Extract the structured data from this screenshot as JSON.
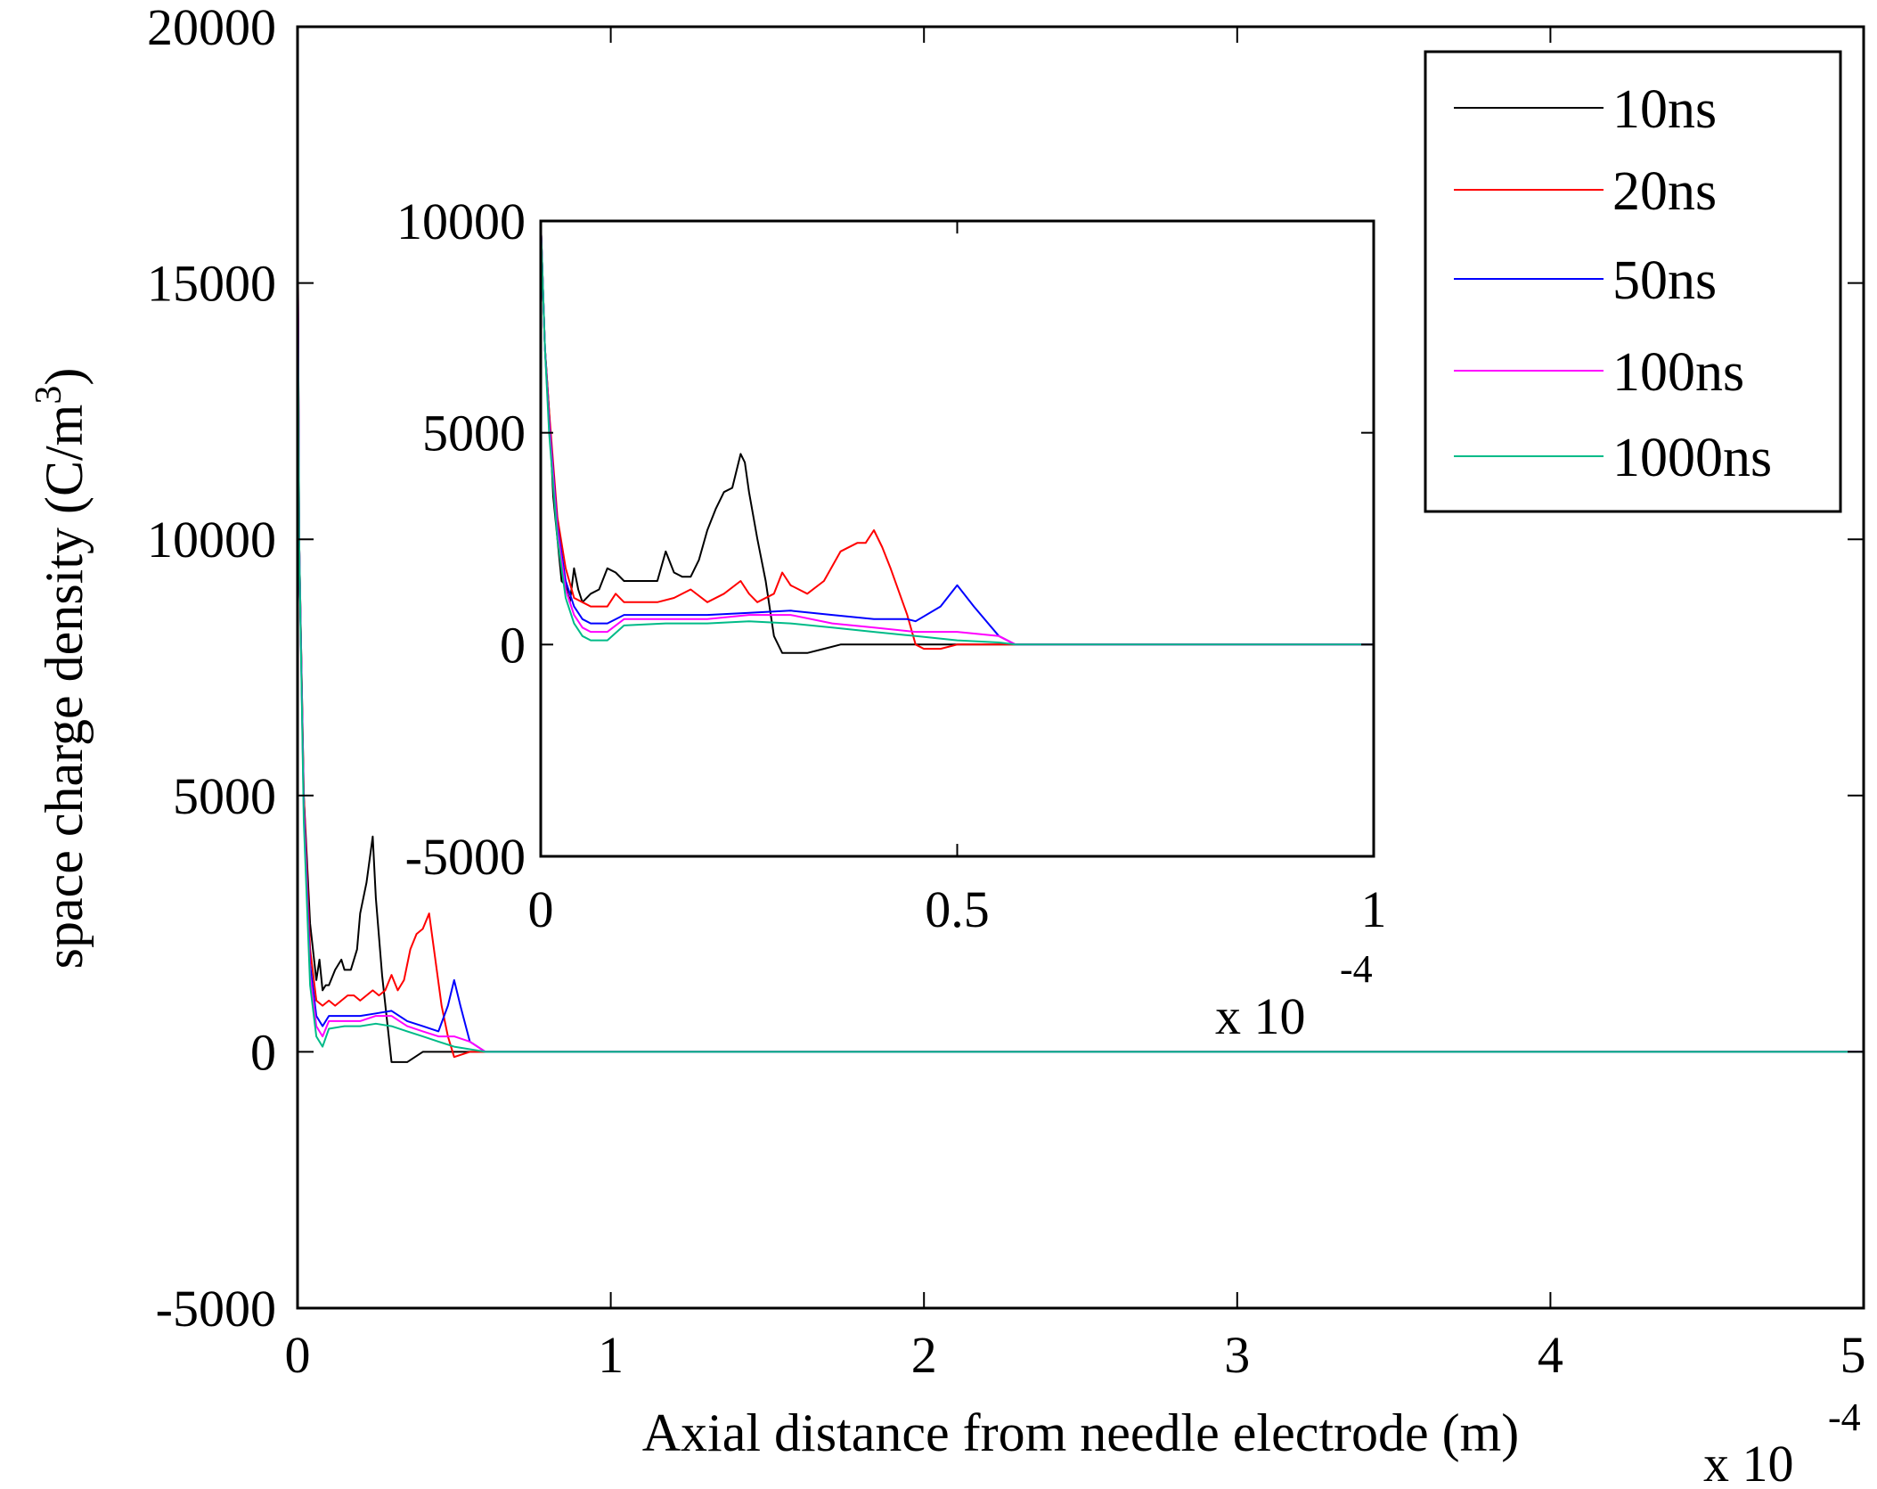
{
  "chart_data": [
    {
      "id": "main",
      "type": "line",
      "xlabel": "Axial distance from needle electrode (m)",
      "ylabel": "space charge density (C/m",
      "ylabel_sup": "3",
      "ylabel_tail": ")",
      "x_multiplier": "x 10",
      "x_multiplier_exp": "-4",
      "xlim": [
        0,
        5
      ],
      "ylim": [
        -5000,
        20000
      ],
      "xticks": [
        0,
        1,
        2,
        3,
        4,
        5
      ],
      "xtick_labels": [
        "0",
        "1",
        "2",
        "3",
        "4",
        "5"
      ],
      "yticks": [
        -5000,
        0,
        5000,
        10000,
        15000,
        20000
      ],
      "ytick_labels": [
        "-5000",
        "0",
        "5000",
        "10000",
        "15000",
        "20000"
      ],
      "grid": false,
      "legend_position": "top-right",
      "series": [
        {
          "name": "10ns",
          "color": "#000000",
          "x": [
            0,
            0.005,
            0.02,
            0.04,
            0.06,
            0.07,
            0.08,
            0.09,
            0.1,
            0.12,
            0.14,
            0.15,
            0.17,
            0.19,
            0.2,
            0.22,
            0.24,
            0.25,
            0.27,
            0.3,
            0.35,
            0.4,
            0.45,
            0.5,
            0.55,
            0.6,
            0.8,
            1.0,
            2.0,
            3.0,
            4.0,
            5.0
          ],
          "y": [
            17000,
            10000,
            5000,
            2500,
            1400,
            1800,
            1200,
            1300,
            1300,
            1600,
            1800,
            1600,
            1600,
            2000,
            2700,
            3300,
            4200,
            3000,
            1500,
            -200,
            -200,
            0,
            0,
            0,
            0,
            0,
            0,
            0,
            0,
            0,
            0,
            0
          ]
        },
        {
          "name": "20ns",
          "color": "#ff0000",
          "x": [
            0,
            0.005,
            0.02,
            0.04,
            0.06,
            0.08,
            0.1,
            0.12,
            0.14,
            0.16,
            0.18,
            0.2,
            0.22,
            0.24,
            0.26,
            0.28,
            0.3,
            0.32,
            0.34,
            0.36,
            0.38,
            0.4,
            0.42,
            0.44,
            0.46,
            0.48,
            0.5,
            0.55,
            0.6,
            1.0,
            2.0,
            3.0,
            4.0,
            5.0
          ],
          "y": [
            17000,
            10000,
            5000,
            2000,
            1000,
            900,
            1000,
            900,
            1000,
            1100,
            1100,
            1000,
            1100,
            1200,
            1100,
            1200,
            1500,
            1200,
            1400,
            2000,
            2300,
            2400,
            2700,
            1800,
            900,
            300,
            -100,
            0,
            0,
            0,
            0,
            0,
            0,
            0
          ]
        },
        {
          "name": "50ns",
          "color": "#0000ff",
          "x": [
            0,
            0.005,
            0.02,
            0.04,
            0.06,
            0.08,
            0.1,
            0.15,
            0.2,
            0.25,
            0.3,
            0.35,
            0.4,
            0.45,
            0.48,
            0.5,
            0.52,
            0.55,
            0.6,
            1.0,
            2.0,
            3.0,
            4.0,
            5.0
          ],
          "y": [
            16800,
            10000,
            4800,
            1700,
            700,
            500,
            700,
            700,
            700,
            750,
            800,
            600,
            500,
            400,
            900,
            1400,
            900,
            200,
            0,
            0,
            0,
            0,
            0,
            0
          ]
        },
        {
          "name": "100ns",
          "color": "#ff00ff",
          "x": [
            0,
            0.005,
            0.02,
            0.04,
            0.06,
            0.08,
            0.1,
            0.15,
            0.2,
            0.25,
            0.3,
            0.35,
            0.4,
            0.45,
            0.5,
            0.55,
            0.6,
            1.0,
            2.0,
            3.0,
            4.0,
            5.0
          ],
          "y": [
            16500,
            10000,
            4700,
            1500,
            500,
            300,
            600,
            600,
            600,
            700,
            700,
            500,
            400,
            300,
            300,
            200,
            0,
            0,
            0,
            0,
            0,
            0
          ]
        },
        {
          "name": "1000ns",
          "color": "#00bb88",
          "x": [
            0,
            0.005,
            0.02,
            0.04,
            0.06,
            0.08,
            0.1,
            0.15,
            0.2,
            0.25,
            0.3,
            0.35,
            0.4,
            0.45,
            0.5,
            0.55,
            0.6,
            1.0,
            2.0,
            3.0,
            4.0,
            5.0
          ],
          "y": [
            16000,
            10000,
            4500,
            1300,
            300,
            100,
            450,
            500,
            500,
            550,
            500,
            400,
            300,
            200,
            100,
            50,
            0,
            0,
            0,
            0,
            0,
            0
          ]
        }
      ]
    },
    {
      "id": "inset",
      "type": "line",
      "x_multiplier": "x 10",
      "x_multiplier_exp": "-4",
      "xlim": [
        0,
        1
      ],
      "ylim": [
        -5000,
        10000
      ],
      "xticks": [
        0,
        0.5,
        1
      ],
      "xtick_labels": [
        "0",
        "0.5",
        "1"
      ],
      "yticks": [
        -5000,
        0,
        5000,
        10000
      ],
      "ytick_labels": [
        "-5000",
        "0",
        "5000",
        "10000"
      ],
      "grid": false,
      "series": [
        {
          "name": "10ns",
          "color": "#000000",
          "x": [
            0,
            0.005,
            0.01,
            0.015,
            0.02,
            0.025,
            0.03,
            0.035,
            0.04,
            0.045,
            0.05,
            0.06,
            0.07,
            0.08,
            0.09,
            0.1,
            0.12,
            0.14,
            0.15,
            0.16,
            0.17,
            0.18,
            0.19,
            0.2,
            0.21,
            0.22,
            0.23,
            0.24,
            0.245,
            0.25,
            0.26,
            0.27,
            0.28,
            0.29,
            0.3,
            0.32,
            0.34,
            0.36,
            0.4,
            0.5,
            0.6,
            0.7,
            0.8,
            0.9,
            1.0
          ],
          "y": [
            10000,
            7000,
            5500,
            3500,
            2500,
            1500,
            1400,
            1000,
            1800,
            1300,
            1000,
            1200,
            1300,
            1800,
            1700,
            1500,
            1500,
            1500,
            2200,
            1700,
            1600,
            1600,
            2000,
            2700,
            3200,
            3600,
            3700,
            4500,
            4300,
            3600,
            2500,
            1500,
            200,
            -200,
            -200,
            -200,
            -100,
            0,
            0,
            0,
            0,
            0,
            0,
            0,
            0
          ]
        },
        {
          "name": "20ns",
          "color": "#ff0000",
          "x": [
            0,
            0.005,
            0.01,
            0.02,
            0.03,
            0.04,
            0.05,
            0.06,
            0.08,
            0.09,
            0.1,
            0.12,
            0.14,
            0.16,
            0.18,
            0.2,
            0.22,
            0.24,
            0.25,
            0.26,
            0.28,
            0.29,
            0.3,
            0.32,
            0.34,
            0.36,
            0.38,
            0.39,
            0.4,
            0.41,
            0.42,
            0.44,
            0.45,
            0.46,
            0.48,
            0.5,
            0.55,
            1.0
          ],
          "y": [
            10000,
            7000,
            5500,
            3000,
            1800,
            1100,
            1000,
            900,
            900,
            1200,
            1000,
            1000,
            1000,
            1100,
            1300,
            1000,
            1200,
            1500,
            1200,
            1000,
            1200,
            1700,
            1400,
            1200,
            1500,
            2200,
            2400,
            2400,
            2700,
            2300,
            1800,
            700,
            0,
            -100,
            -100,
            0,
            0,
            0
          ]
        },
        {
          "name": "50ns",
          "color": "#0000ff",
          "x": [
            0,
            0.005,
            0.01,
            0.02,
            0.03,
            0.04,
            0.05,
            0.06,
            0.08,
            0.1,
            0.15,
            0.2,
            0.25,
            0.3,
            0.35,
            0.4,
            0.44,
            0.45,
            0.48,
            0.5,
            0.52,
            0.55,
            0.57,
            0.6,
            1.0
          ],
          "y": [
            10000,
            7000,
            5300,
            2800,
            1500,
            900,
            600,
            500,
            500,
            700,
            700,
            700,
            750,
            800,
            700,
            600,
            600,
            550,
            900,
            1400,
            900,
            200,
            0,
            0,
            0
          ]
        },
        {
          "name": "100ns",
          "color": "#ff00ff",
          "x": [
            0,
            0.005,
            0.01,
            0.02,
            0.03,
            0.04,
            0.05,
            0.06,
            0.08,
            0.1,
            0.15,
            0.2,
            0.25,
            0.3,
            0.35,
            0.4,
            0.45,
            0.5,
            0.55,
            0.57,
            0.6,
            1.0
          ],
          "y": [
            10000,
            7000,
            5200,
            2700,
            1300,
            700,
            400,
            300,
            300,
            600,
            600,
            600,
            700,
            700,
            500,
            400,
            300,
            300,
            200,
            0,
            0,
            0
          ]
        },
        {
          "name": "1000ns",
          "color": "#00bb88",
          "x": [
            0,
            0.005,
            0.01,
            0.02,
            0.03,
            0.04,
            0.05,
            0.06,
            0.08,
            0.1,
            0.15,
            0.2,
            0.25,
            0.3,
            0.35,
            0.4,
            0.45,
            0.5,
            0.55,
            0.57,
            0.6,
            1.0
          ],
          "y": [
            10000,
            7000,
            5000,
            2500,
            1100,
            500,
            200,
            100,
            100,
            450,
            500,
            500,
            550,
            500,
            400,
            300,
            200,
            100,
            50,
            0,
            0,
            0
          ]
        }
      ]
    }
  ]
}
